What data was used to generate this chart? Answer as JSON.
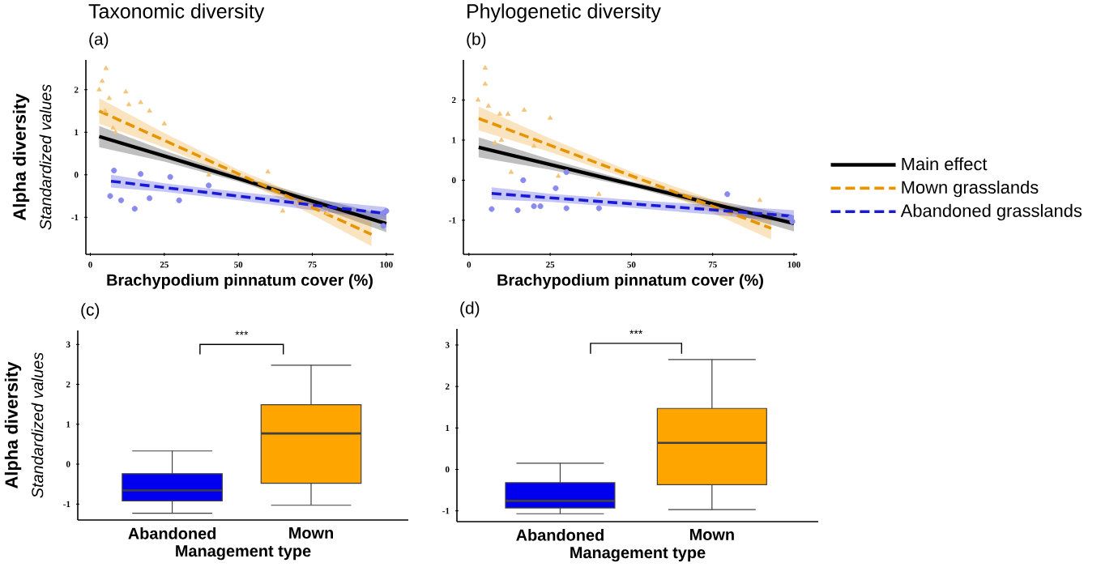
{
  "chart_data": [
    {
      "type": "line",
      "title": "Taxonomic diversity",
      "subtitle": "(a)",
      "xlabel": "Brachypodium pinnatum cover (%)",
      "ylabel": "Alpha diversity",
      "annotations": [
        "Standardized values"
      ],
      "xlim": [
        -1.5,
        102.5
      ],
      "ylim": [
        -1.87,
        2.7
      ],
      "xticks": [
        0,
        25,
        50,
        75,
        100
      ],
      "yticks": [
        -1,
        0,
        1,
        2
      ],
      "series": [
        {
          "type": "line",
          "color": "#000000",
          "line_style": "solid",
          "x": [
            3,
            25,
            50,
            75,
            100
          ],
          "values": [
            0.9,
            0.44,
            -0.09,
            -0.62,
            -1.15
          ],
          "lower": [
            0.65,
            0.31,
            -0.16,
            -0.72,
            -1.35
          ],
          "upper": [
            1.15,
            0.57,
            -0.02,
            -0.52,
            -0.95
          ]
        },
        {
          "type": "line",
          "color": "#e69500",
          "line_style": "dashed",
          "x": [
            3,
            25,
            50,
            75,
            95
          ],
          "values": [
            1.5,
            0.81,
            0.02,
            -0.77,
            -1.4
          ],
          "lower": [
            1.2,
            0.64,
            -0.08,
            -0.94,
            -1.68
          ],
          "upper": [
            1.8,
            0.98,
            0.12,
            -0.6,
            -1.12
          ]
        },
        {
          "type": "line",
          "color": "#1a1ad6",
          "line_style": "dashed",
          "x": [
            7,
            25,
            50,
            75,
            100
          ],
          "values": [
            -0.15,
            -0.3,
            -0.5,
            -0.71,
            -0.91
          ],
          "lower": [
            -0.3,
            -0.4,
            -0.6,
            -0.83,
            -1.06
          ],
          "upper": [
            0,
            -0.2,
            -0.4,
            -0.59,
            -0.76
          ]
        },
        {
          "type": "scatter",
          "color": "#f3c47a",
          "marker": "triangle",
          "x": [
            3,
            4,
            5.3,
            6.4,
            5,
            7.7,
            12,
            13,
            17,
            20,
            25,
            8.5,
            40,
            60,
            65,
            80
          ],
          "values": [
            2.0,
            2.2,
            2.5,
            1.8,
            1.5,
            1.1,
            1.95,
            1.65,
            1.7,
            1.5,
            1.2,
            1.0,
            0,
            0.07,
            -0.85,
            -0.9
          ]
        },
        {
          "type": "scatter",
          "color": "#8a8aee",
          "marker": "circle",
          "x": [
            6.7,
            8,
            10.4,
            15,
            17,
            20,
            27,
            30,
            40,
            99,
            100,
            99
          ],
          "values": [
            -0.5,
            0.1,
            -0.6,
            -0.8,
            0.02,
            -0.55,
            -0.05,
            -0.6,
            -0.25,
            -0.9,
            -0.85,
            -1.2
          ]
        }
      ]
    },
    {
      "type": "line",
      "title": "Phylogenetic diversity",
      "subtitle": "(b)",
      "xlabel": "Brachypodium pinnatum cover (%)",
      "legend": "right",
      "xlim": [
        -1.7,
        101
      ],
      "ylim": [
        -1.85,
        3.0
      ],
      "xticks": [
        0,
        25,
        50,
        75,
        100
      ],
      "yticks": [
        -1,
        0,
        1,
        2
      ],
      "series": [
        {
          "type": "line",
          "name": "Main effect",
          "color": "#000000",
          "line_style": "solid",
          "x": [
            3,
            25,
            50,
            75,
            100
          ],
          "values": [
            0.82,
            0.39,
            -0.1,
            -0.59,
            -1.08
          ],
          "lower": [
            0.57,
            0.26,
            -0.17,
            -0.69,
            -1.28
          ],
          "upper": [
            1.07,
            0.52,
            -0.03,
            -0.49,
            -0.88
          ]
        },
        {
          "type": "line",
          "name": "Mown grasslands",
          "color": "#e69500",
          "line_style": "dashed",
          "x": [
            3,
            25,
            50,
            75,
            93
          ],
          "values": [
            1.54,
            0.87,
            0.11,
            -0.65,
            -1.2
          ],
          "lower": [
            1.24,
            0.7,
            0.01,
            -0.82,
            -1.48
          ],
          "upper": [
            1.84,
            1.04,
            0.21,
            -0.48,
            -0.92
          ]
        },
        {
          "type": "line",
          "name": "Abandoned grasslands",
          "color": "#1a1ad6",
          "line_style": "dashed",
          "x": [
            7,
            25,
            50,
            75,
            100
          ],
          "values": [
            -0.33,
            -0.44,
            -0.59,
            -0.74,
            -0.9
          ],
          "lower": [
            -0.48,
            -0.54,
            -0.69,
            -0.86,
            -1.05
          ],
          "upper": [
            -0.18,
            -0.34,
            -0.49,
            -0.62,
            -0.75
          ]
        },
        {
          "type": "scatter",
          "color": "#f3c47a",
          "marker": "triangle",
          "x": [
            2.8,
            5,
            5,
            6,
            9.5,
            12,
            17,
            25,
            13,
            8,
            10,
            20,
            27.5,
            40,
            89.5
          ],
          "values": [
            2.0,
            2.8,
            2.4,
            1.85,
            1.65,
            1.65,
            1.75,
            1.55,
            0.2,
            0.93,
            1.0,
            0.85,
            0.1,
            -0.35,
            -0.5
          ]
        },
        {
          "type": "scatter",
          "color": "#8a8aee",
          "marker": "circle",
          "x": [
            7,
            16.7,
            15,
            20,
            22,
            26.7,
            30,
            30,
            40,
            79.5,
            99,
            99.5
          ],
          "values": [
            -0.72,
            0,
            -0.75,
            -0.65,
            -0.65,
            -0.2,
            0.2,
            -0.7,
            -0.7,
            -0.35,
            -0.93,
            -1.03
          ]
        }
      ]
    },
    {
      "type": "box",
      "title": "(c)",
      "xlabel": "Management type",
      "ylabel": "Alpha diversity",
      "annotations": [
        "Standardized values",
        "***"
      ],
      "categories": [
        "Abandoned",
        "Mown"
      ],
      "colors": [
        "#0000ee",
        "#ffa500"
      ],
      "ylim": [
        -1.4,
        3.35
      ],
      "yticks": [
        -1,
        0,
        1,
        2,
        3
      ],
      "boxes": [
        {
          "low": -1.23,
          "q1": -0.92,
          "median": -0.66,
          "q3": -0.24,
          "high": 0.33
        },
        {
          "low": -1.03,
          "q1": -0.48,
          "median": 0.77,
          "q3": 1.49,
          "high": 2.48
        }
      ]
    },
    {
      "type": "box",
      "title": "(d)",
      "xlabel": "Management type",
      "annotations": [
        "***"
      ],
      "categories": [
        "Abandoned",
        "Mown"
      ],
      "colors": [
        "#0000ee",
        "#ffa500"
      ],
      "ylim": [
        -1.26,
        3.39
      ],
      "yticks": [
        -1,
        0,
        1,
        2,
        3
      ],
      "boxes": [
        {
          "low": -1.07,
          "q1": -0.93,
          "median": -0.76,
          "q3": -0.32,
          "high": 0.15
        },
        {
          "low": -0.97,
          "q1": -0.37,
          "median": 0.64,
          "q3": 1.47,
          "high": 2.65
        }
      ]
    }
  ]
}
